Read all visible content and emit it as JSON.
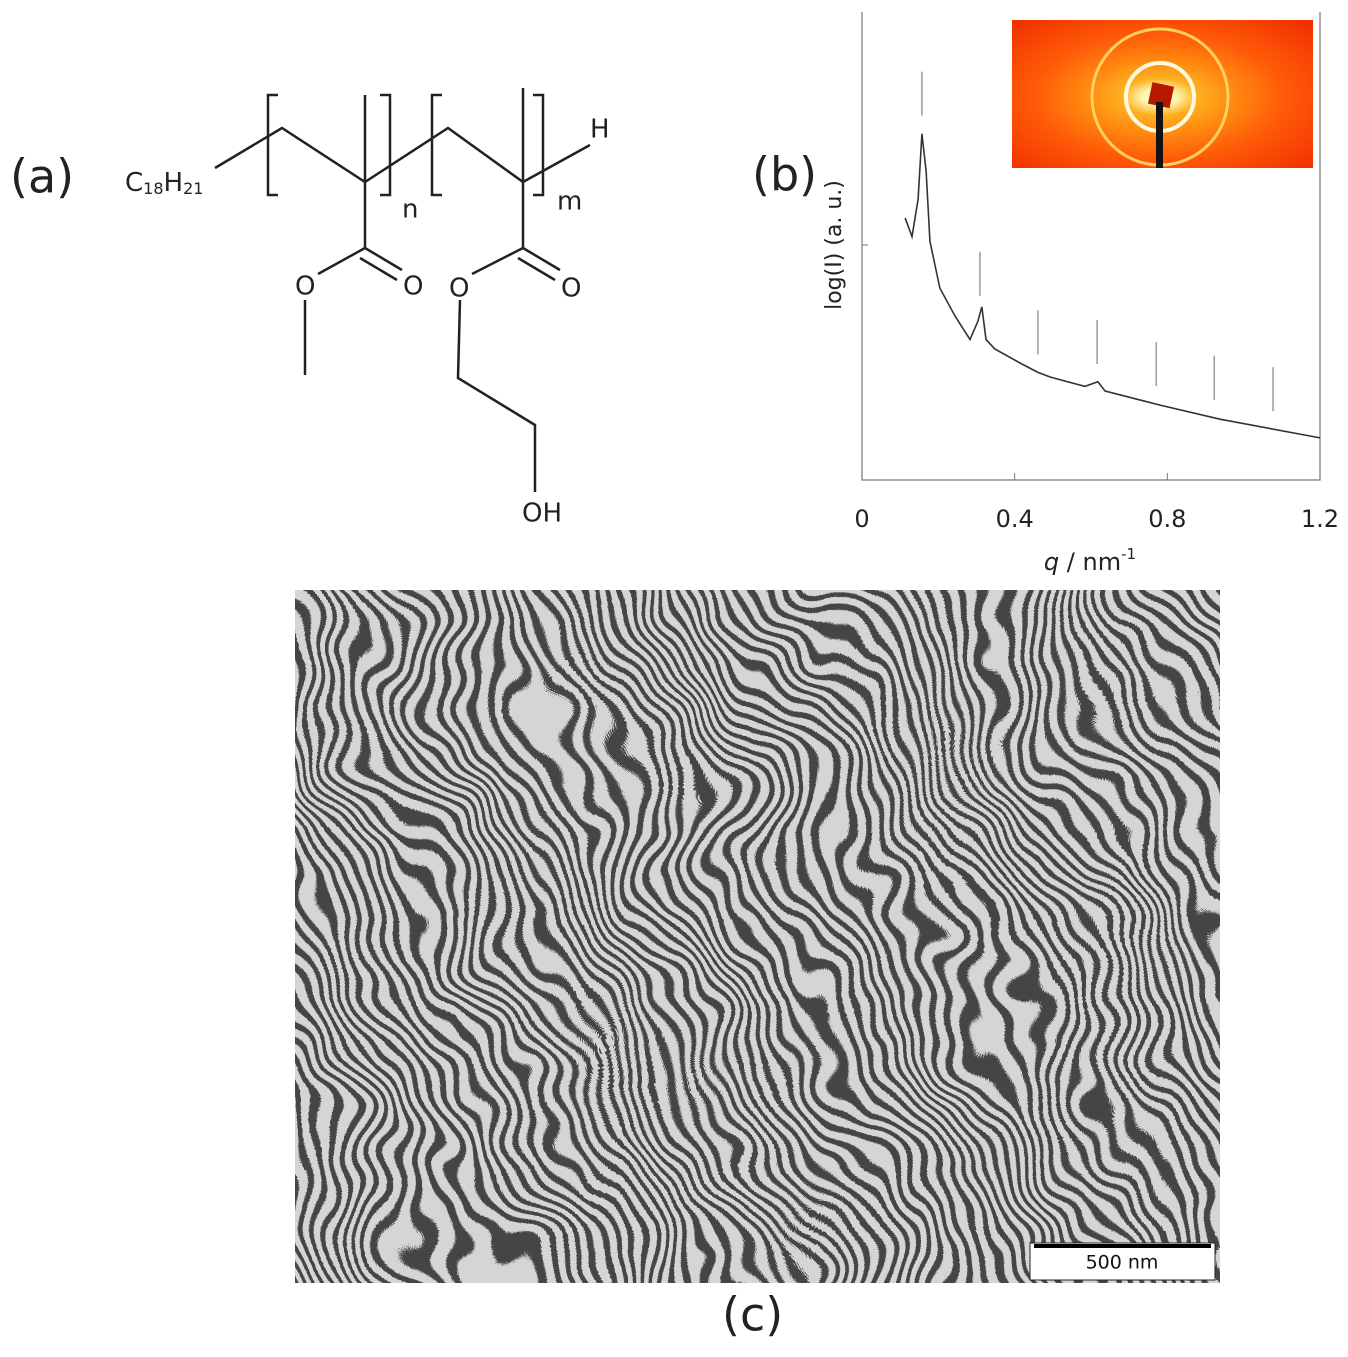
{
  "panel_labels": [
    "(a)",
    "(b)",
    "(c)"
  ],
  "structure": {
    "end_group": [
      "C",
      "18",
      "H",
      "21"
    ],
    "end_h": "H",
    "repeat_n": "n",
    "repeat_m": "m",
    "oxygens": [
      "O",
      "O",
      "O",
      "O"
    ],
    "hydroxyl": "OH"
  },
  "chart_data": {
    "type": "line",
    "x_label": [
      "q",
      " / nm",
      "-1"
    ],
    "y_label": "log(I) (a. u.)",
    "x": [
      0.113,
      0.131,
      0.147,
      0.157,
      0.168,
      0.178,
      0.204,
      0.244,
      0.283,
      0.304,
      0.314,
      0.325,
      0.348,
      0.414,
      0.461,
      0.493,
      0.584,
      0.618,
      0.637,
      0.781,
      0.938,
      1.2
    ],
    "values": [
      0.56,
      0.52,
      0.6,
      0.74,
      0.66,
      0.51,
      0.41,
      0.35,
      0.3,
      0.34,
      0.37,
      0.3,
      0.28,
      0.25,
      0.23,
      0.22,
      0.2,
      0.21,
      0.19,
      0.16,
      0.13,
      0.09
    ],
    "color": "#333333",
    "peak_positions": [
      0.157,
      0.309,
      0.461,
      0.616,
      0.771,
      0.923,
      1.077
    ],
    "xlim": [
      0,
      1.2
    ],
    "ylim": [
      0,
      1
    ],
    "xticks": [
      0,
      0.4,
      0.8,
      1.2
    ]
  },
  "micrograph": {
    "scale_bar": "500 nm"
  }
}
